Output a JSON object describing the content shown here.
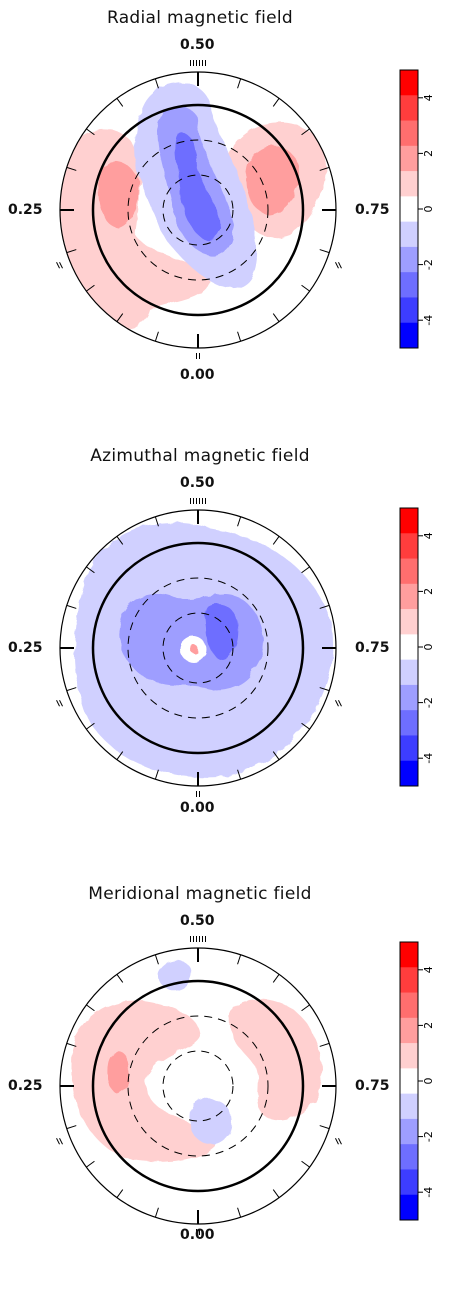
{
  "figure": {
    "colorbar": {
      "ticks": [
        "4",
        "2",
        "0",
        "-2",
        "-4"
      ],
      "range": [
        -5,
        5
      ],
      "levels_top_to_bottom": [
        "#ff0000",
        "#ff3d3d",
        "#ff6e6e",
        "#ff9e9e",
        "#ffd0d0",
        "#ffffff",
        "#d0d0ff",
        "#9e9eff",
        "#6e6eff",
        "#3d3dff",
        "#0000ff"
      ]
    }
  },
  "chart_data": [
    {
      "type": "heatmap",
      "projection": "polar (stellar surface, pole at centre)",
      "title": "Radial magnetic field",
      "phase_labels": {
        "top": "0.50",
        "left": "0.25",
        "right": "0.75",
        "bottom": "0.00"
      },
      "colorbar_range": [
        -5,
        5
      ],
      "regions": [
        {
          "sign": "positive",
          "level": 1,
          "approx_phase": 0.28,
          "note": "large crescent on left"
        },
        {
          "sign": "positive",
          "level": 2,
          "approx_phase": 0.3,
          "note": "spot on left"
        },
        {
          "sign": "positive",
          "level": 1,
          "approx_phase": 0.67,
          "note": "region on upper right"
        },
        {
          "sign": "positive",
          "level": 2,
          "approx_phase": 0.67,
          "note": "spot on upper right"
        },
        {
          "sign": "negative",
          "level": -1,
          "approx_phase": 0.5,
          "note": "elongated region across pole"
        },
        {
          "sign": "negative",
          "level": -2,
          "approx_phase": 0.5,
          "note": "core across pole"
        }
      ]
    },
    {
      "type": "heatmap",
      "projection": "polar (stellar surface, pole at centre)",
      "title": "Azimuthal magnetic field",
      "phase_labels": {
        "top": "0.50",
        "left": "0.25",
        "right": "0.75",
        "bottom": "0.00"
      },
      "colorbar_range": [
        -5,
        5
      ],
      "regions": [
        {
          "sign": "negative",
          "level": -1,
          "approx_phase": null,
          "note": "broad ring covering most of hemisphere"
        },
        {
          "sign": "negative",
          "level": -2,
          "approx_phase": null,
          "note": "ring around pole"
        },
        {
          "sign": "positive",
          "level": 1,
          "approx_phase": null,
          "note": "small spot at pole"
        }
      ]
    },
    {
      "type": "heatmap",
      "projection": "polar (stellar surface, pole at centre)",
      "title": "Meridional magnetic field",
      "phase_labels": {
        "top": "0.50",
        "left": "0.25",
        "right": "0.75",
        "bottom": "0.00"
      },
      "colorbar_range": [
        -5,
        5
      ],
      "regions": [
        {
          "sign": "positive",
          "level": 1,
          "approx_phase": 0.3,
          "note": "large region on left"
        },
        {
          "sign": "positive",
          "level": 2,
          "approx_phase": 0.3,
          "note": "small spot on left"
        },
        {
          "sign": "positive",
          "level": 1,
          "approx_phase": 0.68,
          "note": "region on right"
        },
        {
          "sign": "negative",
          "level": -1,
          "approx_phase": 0.5,
          "note": "small spot near top"
        },
        {
          "sign": "negative",
          "level": -1,
          "approx_phase": 0.05,
          "note": "spot below pole"
        }
      ]
    }
  ]
}
